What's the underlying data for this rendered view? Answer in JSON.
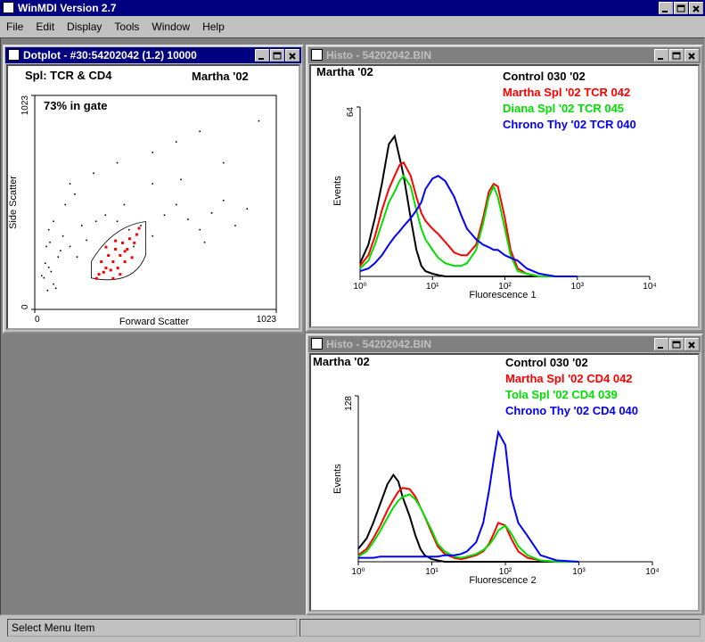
{
  "app": {
    "title": "WinMDI Version 2.7",
    "menu": [
      "File",
      "Edit",
      "Display",
      "Tools",
      "Window",
      "Help"
    ],
    "status": "Select Menu Item"
  },
  "windows": [
    {
      "title": "Dotplot - #30:54202042 (1.2) 10000"
    },
    {
      "title": "Histo - 54202042.BIN"
    },
    {
      "title": "Histo - 54202042.BIN"
    }
  ],
  "chart_data": [
    {
      "type": "scatter",
      "title": "Spl: TCR & CD4",
      "subtitle": "Martha '02",
      "annotation": "73% in gate",
      "xlabel": "Forward Scatter",
      "ylabel": "Side Scatter",
      "xlim": [
        0,
        1023
      ],
      "ylim": [
        0,
        1023
      ],
      "xticks": [
        0,
        1023
      ],
      "yticks": [
        0,
        1023
      ],
      "series": [
        {
          "color": "#000000",
          "x": [
            40,
            60,
            80,
            100,
            50,
            70,
            120,
            150,
            180,
            200,
            90,
            110,
            60,
            30,
            45,
            220,
            260,
            300,
            350,
            400,
            450,
            500,
            550,
            600,
            650,
            700,
            750,
            800,
            850,
            900,
            150,
            250,
            350,
            500,
            600,
            700,
            800,
            950,
            130,
            170,
            80,
            55,
            65,
            500,
            420,
            380,
            620,
            720
          ],
          "y": [
            150,
            200,
            120,
            250,
            300,
            180,
            350,
            300,
            250,
            400,
            100,
            280,
            380,
            160,
            220,
            330,
            420,
            450,
            420,
            380,
            400,
            350,
            450,
            500,
            430,
            380,
            460,
            520,
            400,
            480,
            600,
            650,
            700,
            750,
            800,
            850,
            700,
            900,
            500,
            550,
            420,
            90,
            320,
            600,
            300,
            500,
            620,
            320
          ]
        },
        {
          "color": "#ff0000",
          "x": [
            270,
            300,
            330,
            360,
            390,
            420,
            280,
            310,
            340,
            370,
            400,
            430,
            290,
            320,
            350,
            380,
            410,
            260,
            300,
            340,
            380,
            440,
            330,
            360
          ],
          "y": [
            170,
            200,
            230,
            260,
            290,
            320,
            230,
            260,
            290,
            320,
            340,
            360,
            180,
            190,
            200,
            230,
            250,
            150,
            300,
            330,
            280,
            390,
            150,
            170
          ]
        }
      ]
    },
    {
      "type": "line",
      "title": "Martha '02",
      "xlabel": "Fluorescence 1",
      "ylabel": "Events",
      "log_x": true,
      "xlim": [
        1,
        10000
      ],
      "xticks": [
        {
          "value": 1,
          "label": "10⁰"
        },
        {
          "value": 10,
          "label": "10¹"
        },
        {
          "value": 100,
          "label": "10²"
        },
        {
          "value": 1000,
          "label": "10³"
        },
        {
          "value": 10000,
          "label": "10⁴"
        }
      ],
      "ylim": [
        0,
        64
      ],
      "yticks": [
        64
      ],
      "x": [
        1,
        1.3,
        1.6,
        2,
        2.5,
        3,
        3.5,
        4,
        5,
        6,
        7,
        8,
        10,
        12,
        15,
        20,
        25,
        30,
        40,
        50,
        60,
        70,
        80,
        100,
        120,
        150,
        200,
        300,
        500,
        1000
      ],
      "series": [
        {
          "name": "Control 030 '02",
          "color": "#000000",
          "values": [
            5,
            12,
            22,
            35,
            50,
            53,
            45,
            38,
            22,
            10,
            4,
            2,
            1,
            0.5,
            0,
            0,
            0,
            0,
            0,
            0,
            0,
            0,
            0,
            0,
            0,
            0,
            0,
            0,
            0,
            0
          ]
        },
        {
          "name": "Martha Spl '02 TCR 042",
          "color": "#ff0000",
          "values": [
            4,
            8,
            15,
            25,
            33,
            38,
            42,
            43,
            38,
            30,
            24,
            21,
            18,
            16,
            13,
            9,
            8,
            8,
            12,
            22,
            32,
            35,
            34,
            22,
            10,
            3,
            1,
            0,
            0,
            0
          ]
        },
        {
          "name": "Diana Spl '02 TCR 045",
          "color": "#00e000",
          "values": [
            3,
            6,
            12,
            20,
            28,
            32,
            36,
            38,
            34,
            25,
            18,
            14,
            10,
            7,
            5,
            4,
            4,
            5,
            10,
            20,
            30,
            34,
            30,
            18,
            8,
            2,
            1,
            0,
            0,
            0
          ]
        },
        {
          "name": "Chrono Thy '02 TCR 040",
          "color": "#0000ff",
          "values": [
            2,
            3,
            5,
            8,
            12,
            15,
            17,
            19,
            22,
            25,
            28,
            33,
            37,
            38,
            36,
            30,
            23,
            18,
            14,
            12,
            11,
            10,
            10,
            8,
            7,
            6,
            3,
            1,
            0,
            0
          ]
        }
      ]
    },
    {
      "type": "line",
      "title": "Martha '02",
      "xlabel": "Fluorescence 2",
      "ylabel": "Events",
      "log_x": true,
      "xlim": [
        1,
        10000
      ],
      "xticks": [
        {
          "value": 1,
          "label": "10⁰"
        },
        {
          "value": 10,
          "label": "10¹"
        },
        {
          "value": 100,
          "label": "10²"
        },
        {
          "value": 1000,
          "label": "10³"
        },
        {
          "value": 10000,
          "label": "10⁴"
        }
      ],
      "ylim": [
        0,
        128
      ],
      "yticks": [
        128
      ],
      "x": [
        1,
        1.3,
        1.6,
        2,
        2.5,
        3,
        3.5,
        4,
        5,
        6,
        7,
        8,
        10,
        12,
        15,
        20,
        25,
        30,
        40,
        50,
        60,
        70,
        80,
        100,
        120,
        150,
        200,
        300,
        500,
        1000
      ],
      "series": [
        {
          "name": "Control 030 '02",
          "color": "#000000",
          "values": [
            10,
            18,
            30,
            45,
            60,
            67,
            62,
            50,
            35,
            20,
            10,
            5,
            2,
            1,
            0,
            0,
            0,
            0,
            0,
            0,
            0,
            0,
            0,
            0,
            0,
            0,
            0,
            0,
            0,
            0
          ]
        },
        {
          "name": "Martha Spl '02 CD4 042",
          "color": "#ff0000",
          "values": [
            5,
            10,
            18,
            28,
            40,
            48,
            54,
            57,
            56,
            50,
            42,
            35,
            22,
            12,
            6,
            3,
            2,
            3,
            5,
            8,
            14,
            22,
            30,
            28,
            18,
            8,
            3,
            1,
            0,
            0
          ]
        },
        {
          "name": "Tola Spl '02 CD4 039",
          "color": "#00e000",
          "values": [
            4,
            8,
            15,
            24,
            34,
            42,
            47,
            50,
            52,
            48,
            42,
            35,
            24,
            14,
            8,
            4,
            3,
            4,
            6,
            9,
            13,
            18,
            24,
            28,
            22,
            12,
            5,
            1,
            0,
            0
          ]
        },
        {
          "name": "Chrono Thy '02 CD4 040",
          "color": "#0000ff",
          "values": [
            3,
            3,
            3,
            4,
            4,
            4,
            4,
            4,
            4,
            4,
            4,
            4,
            4,
            4,
            5,
            5,
            6,
            8,
            15,
            30,
            55,
            80,
            100,
            90,
            50,
            30,
            20,
            5,
            1,
            0
          ]
        }
      ]
    }
  ]
}
